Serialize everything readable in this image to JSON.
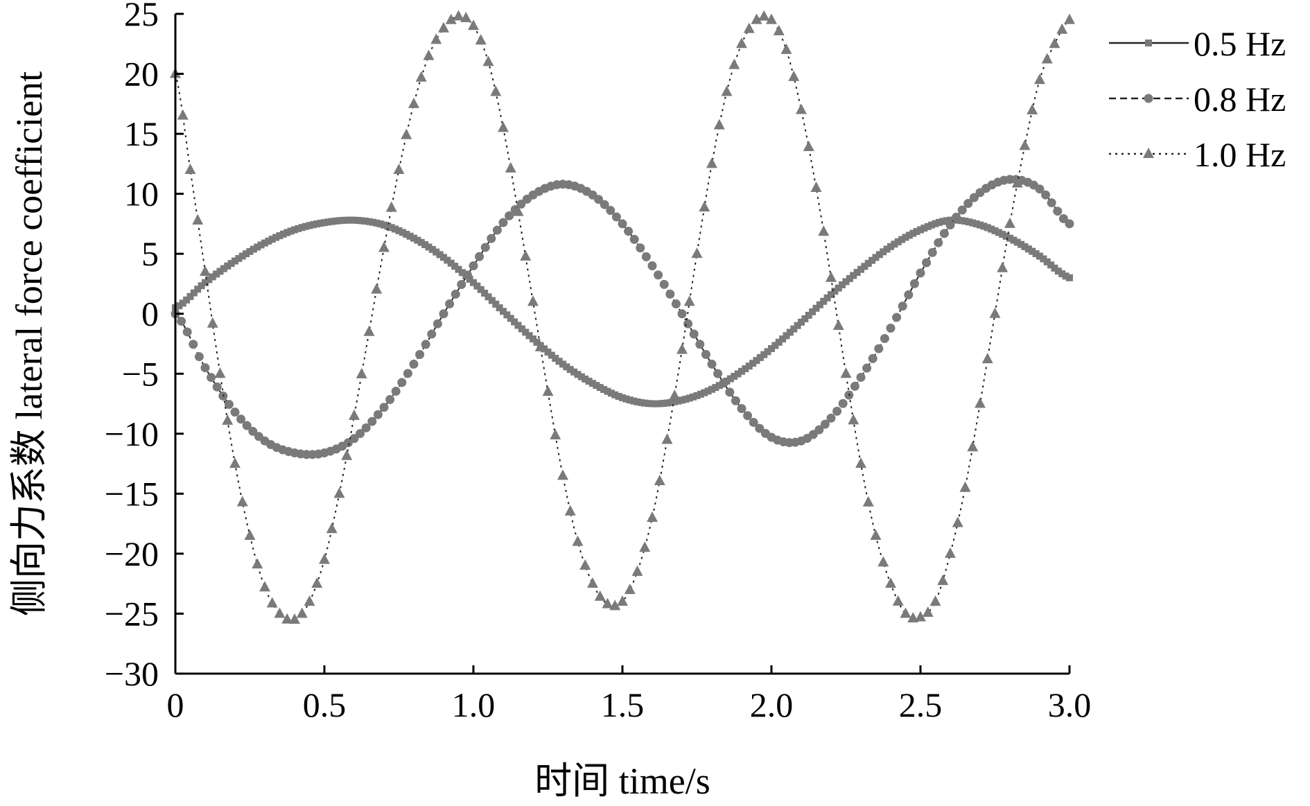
{
  "chart_data": {
    "type": "line",
    "xlabel": "时间 time/s",
    "ylabel": "侧向力系数 lateral force coefficient",
    "xlim": [
      0,
      3.0
    ],
    "ylim": [
      -30,
      25
    ],
    "x_ticks": [
      0,
      0.5,
      1.0,
      1.5,
      2.0,
      2.5,
      3.0
    ],
    "x_tick_labels": [
      "0",
      "0.5",
      "1.0",
      "1.5",
      "2.0",
      "2.5",
      "3.0"
    ],
    "y_ticks": [
      25,
      20,
      15,
      10,
      5,
      0,
      -5,
      -10,
      -15,
      -20,
      -25,
      -30
    ],
    "y_tick_labels": [
      "25",
      "20",
      "15",
      "10",
      "5",
      "0",
      "−5",
      "−10",
      "−15",
      "−20",
      "−25",
      "−30"
    ],
    "grid": false,
    "legend_position": "top-right, outside plot",
    "series": [
      {
        "name": "0.5 Hz",
        "line_style": "solid",
        "marker": "square",
        "color": "#7a7a7a",
        "x": [
          0,
          0.1,
          0.2,
          0.3,
          0.4,
          0.5,
          0.6,
          0.7,
          0.8,
          0.9,
          1.0,
          1.1,
          1.2,
          1.3,
          1.4,
          1.5,
          1.6,
          1.7,
          1.8,
          1.9,
          2.0,
          2.1,
          2.2,
          2.3,
          2.4,
          2.5,
          2.6,
          2.7,
          2.8,
          2.9,
          3.0
        ],
        "y": [
          0.5,
          2.6,
          4.4,
          5.9,
          7.0,
          7.6,
          7.8,
          7.4,
          6.3,
          4.7,
          2.6,
          0.2,
          -2.1,
          -4.2,
          -5.8,
          -7.0,
          -7.5,
          -7.2,
          -6.3,
          -4.8,
          -2.9,
          -0.7,
          1.6,
          3.7,
          5.6,
          7.0,
          7.8,
          7.4,
          6.3,
          4.8,
          3.0
        ]
      },
      {
        "name": "0.8 Hz",
        "line_style": "dashed",
        "marker": "circle",
        "color": "#7a7a7a",
        "x": [
          0,
          0.1,
          0.2,
          0.3,
          0.4,
          0.5,
          0.6,
          0.7,
          0.8,
          0.9,
          1.0,
          1.1,
          1.2,
          1.3,
          1.4,
          1.5,
          1.6,
          1.7,
          1.8,
          1.9,
          2.0,
          2.1,
          2.2,
          2.3,
          2.4,
          2.5,
          2.6,
          2.7,
          2.8,
          2.9,
          3.0
        ],
        "y": [
          0,
          -4.5,
          -8.2,
          -10.6,
          -11.6,
          -11.6,
          -10.4,
          -7.8,
          -4.2,
          0.0,
          4.0,
          7.6,
          9.9,
          10.8,
          9.9,
          7.5,
          4.0,
          0.0,
          -4.2,
          -7.9,
          -10.3,
          -10.6,
          -8.7,
          -5.3,
          -1.2,
          3.4,
          7.4,
          10.1,
          11.2,
          10.4,
          7.5
        ]
      },
      {
        "name": "1.0 Hz",
        "line_style": "dotted",
        "marker": "triangle",
        "color": "#7a7a7a",
        "x": [
          0,
          0.05,
          0.1,
          0.15,
          0.2,
          0.25,
          0.3,
          0.35,
          0.4,
          0.45,
          0.5,
          0.55,
          0.6,
          0.65,
          0.7,
          0.75,
          0.8,
          0.85,
          0.9,
          0.95,
          1.0,
          1.05,
          1.1,
          1.15,
          1.2,
          1.25,
          1.3,
          1.35,
          1.4,
          1.45,
          1.5,
          1.55,
          1.6,
          1.65,
          1.7,
          1.75,
          1.8,
          1.85,
          1.9,
          1.95,
          2.0,
          2.05,
          2.1,
          2.15,
          2.2,
          2.25,
          2.3,
          2.35,
          2.4,
          2.45,
          2.5,
          2.55,
          2.6,
          2.65,
          2.7,
          2.75,
          2.8,
          2.85,
          2.9,
          2.95,
          3.0
        ],
        "y": [
          20.0,
          12.0,
          3.5,
          -5.0,
          -12.5,
          -18.5,
          -22.8,
          -25.0,
          -25.5,
          -24.0,
          -20.5,
          -15.0,
          -8.5,
          -1.5,
          5.5,
          12.0,
          17.5,
          21.5,
          23.8,
          24.8,
          24.0,
          21.0,
          15.5,
          8.5,
          1.0,
          -6.5,
          -13.5,
          -19.0,
          -22.5,
          -24.2,
          -24.0,
          -21.5,
          -17.0,
          -10.5,
          -3.0,
          5.0,
          12.5,
          18.5,
          22.5,
          24.5,
          24.5,
          22.0,
          17.0,
          10.5,
          3.0,
          -5.0,
          -12.5,
          -18.5,
          -22.5,
          -25.0,
          -25.3,
          -24.0,
          -20.0,
          -14.5,
          -7.5,
          0.0,
          7.5,
          14.0,
          19.5,
          22.5,
          24.5
        ]
      }
    ]
  }
}
